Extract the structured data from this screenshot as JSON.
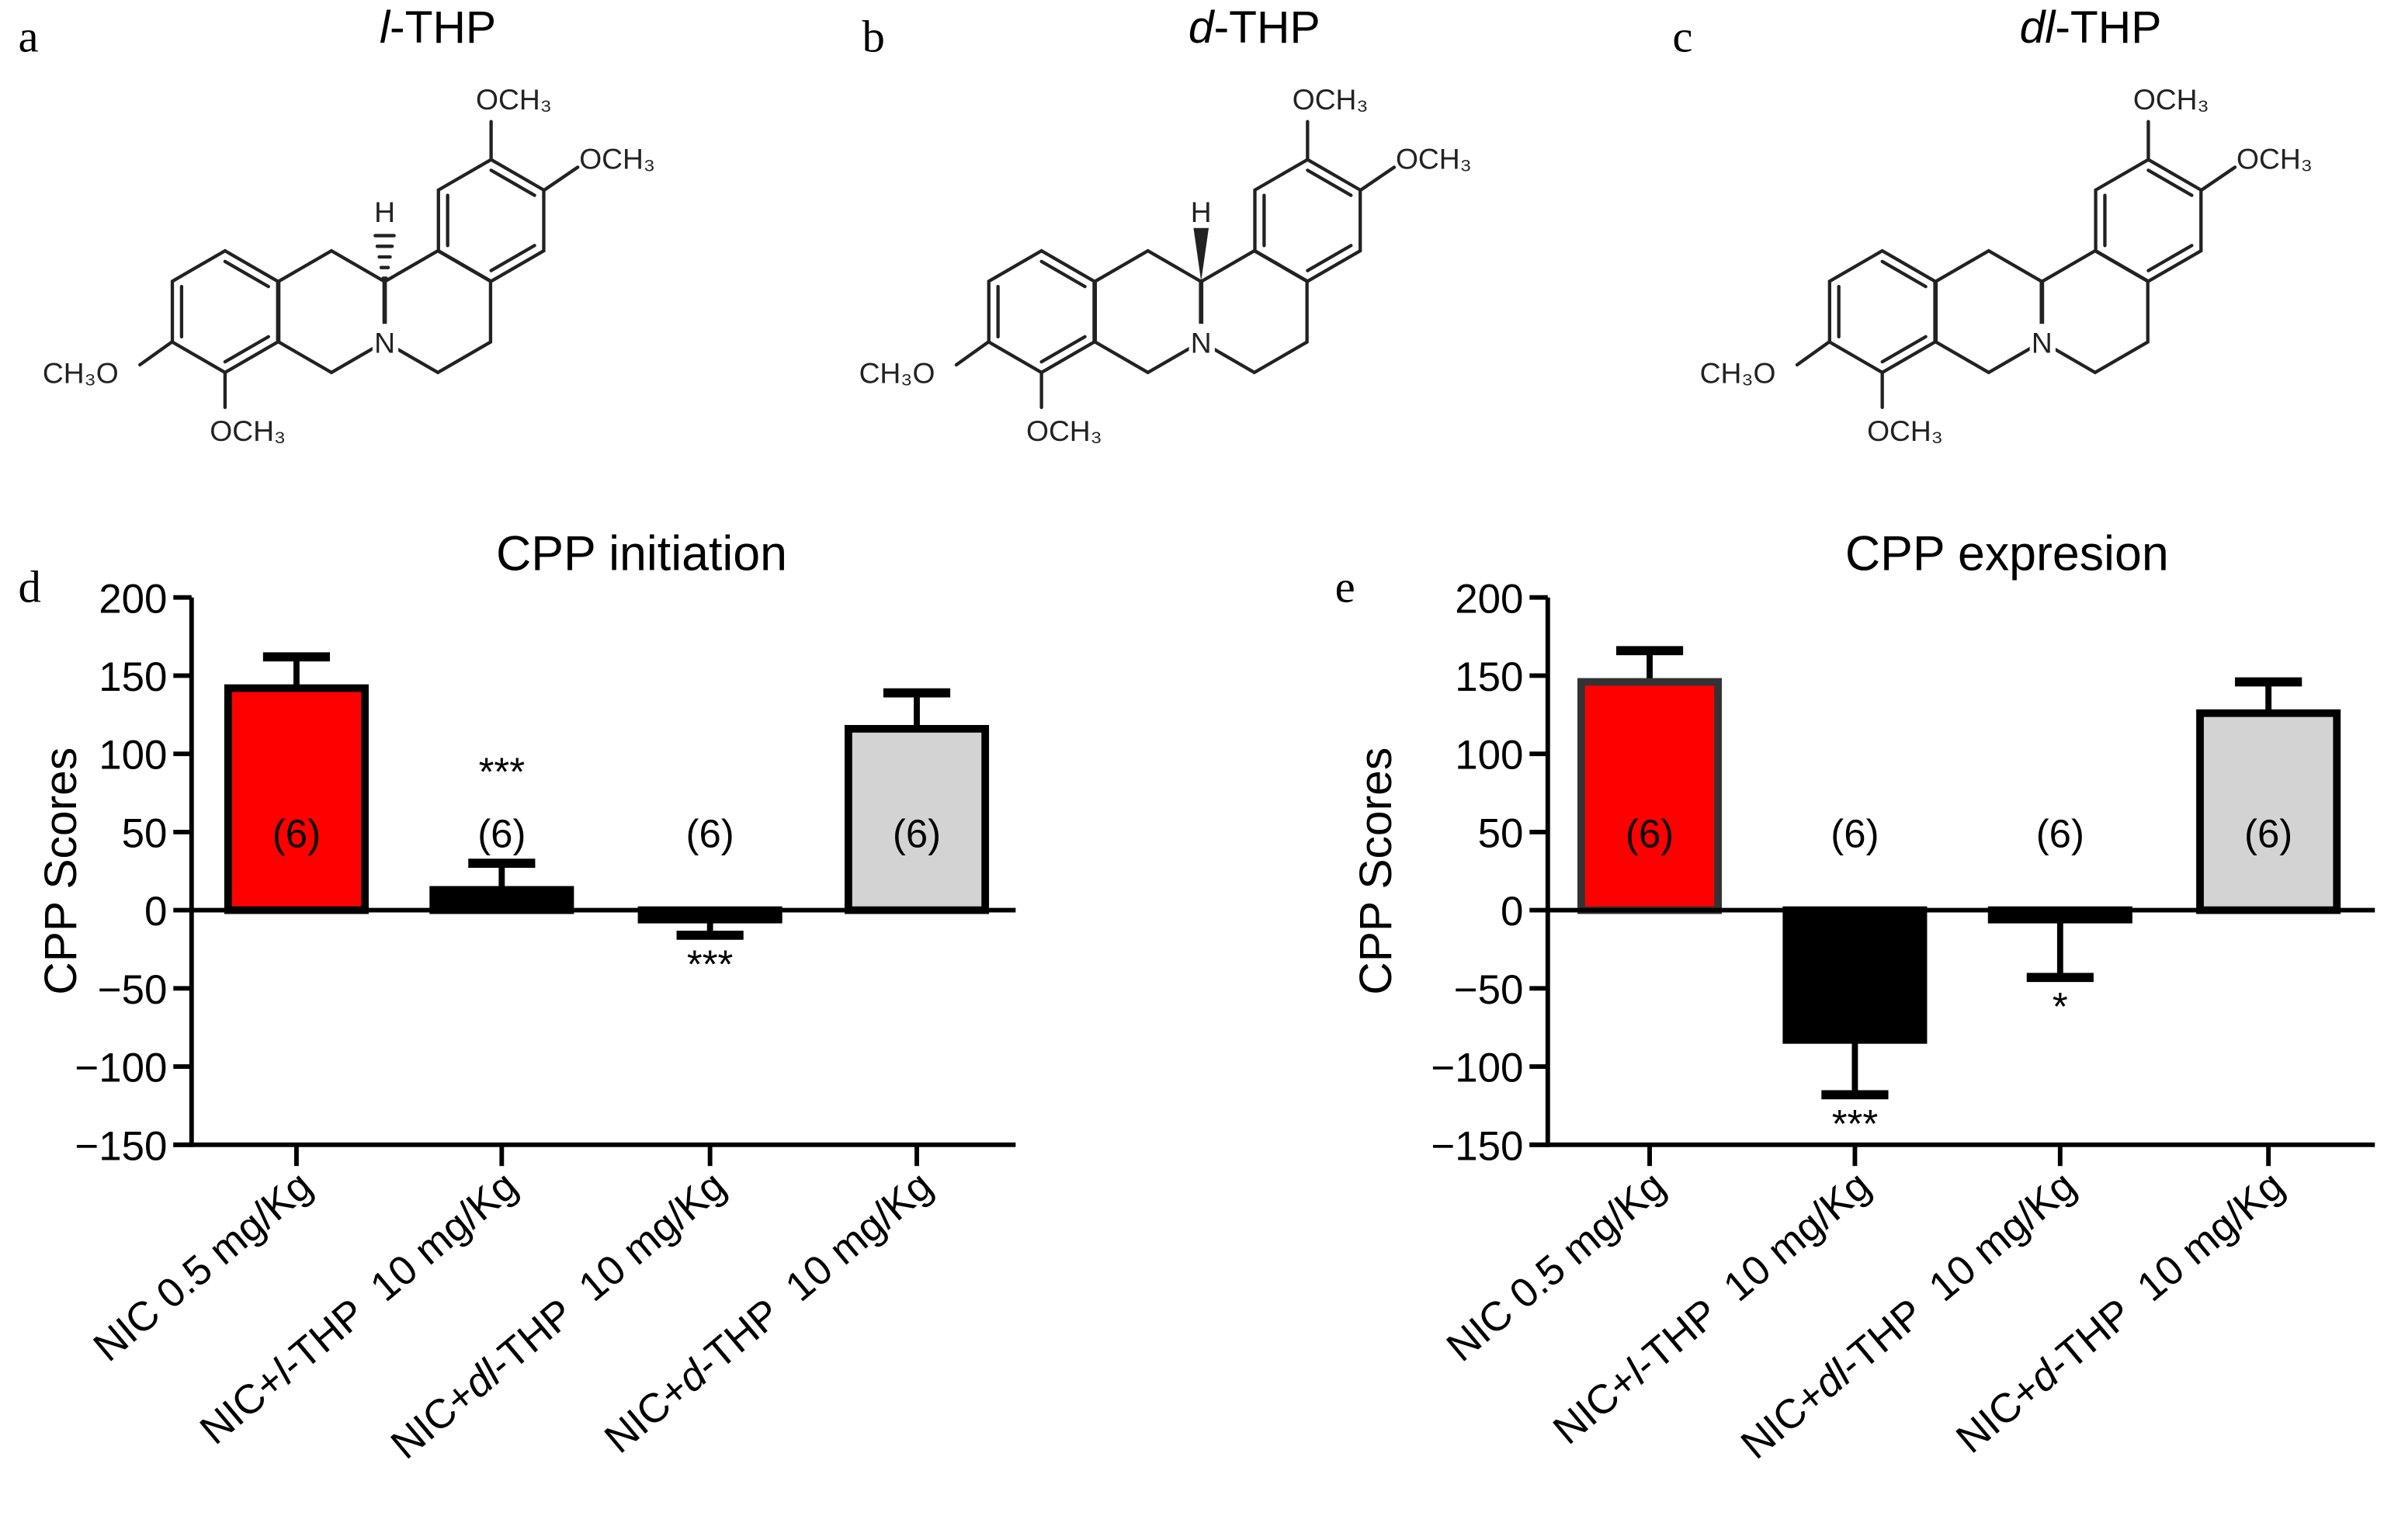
{
  "structures": [
    {
      "panel": "a",
      "title_italic": "l",
      "title_suffix": "-THP",
      "stereo": "hash"
    },
    {
      "panel": "b",
      "title_italic": "d",
      "title_suffix": "-THP",
      "stereo": "wedge"
    },
    {
      "panel": "c",
      "title_italic": "dl",
      "title_suffix": "-THP",
      "stereo": "none"
    }
  ],
  "chem_labels": {
    "och3": "OCH₃",
    "ch3o": "CH₃O",
    "n": "N",
    "h": "H"
  },
  "chart_data": [
    {
      "panel": "d",
      "type": "bar",
      "title": "CPP initiation",
      "ylabel": "CPP Scores",
      "ylim": [
        -150,
        200
      ],
      "yticks": [
        200,
        150,
        100,
        50,
        0,
        -50,
        -100,
        -150
      ],
      "ytick_labels": [
        "200",
        "150",
        "100",
        "50",
        "0",
        "−50",
        "−100",
        "−150"
      ],
      "categories": [
        {
          "prefix": "NIC 0.5 mg/Kg",
          "italic": "",
          "suffix": ""
        },
        {
          "prefix": "NIC+",
          "italic": "l",
          "suffix": "-THP  10 mg/Kg"
        },
        {
          "prefix": "NIC+",
          "italic": "dl",
          "suffix": "-THP  10 mg/Kg"
        },
        {
          "prefix": "NIC+",
          "italic": "d",
          "suffix": "-THP  10 mg/Kg"
        }
      ],
      "values": [
        142,
        13,
        -6,
        116
      ],
      "error": [
        20,
        17,
        10,
        23
      ],
      "n_labels": [
        "(6)",
        "(6)",
        "(6)",
        "(6)"
      ],
      "significance": [
        "",
        "***",
        "***",
        ""
      ],
      "colors": [
        "#ff0000",
        "#000000",
        "#000000",
        "#d3d3d3"
      ],
      "edge_colors": [
        "#000000",
        "#000000",
        "#000000",
        "#000000"
      ]
    },
    {
      "panel": "e",
      "type": "bar",
      "title": "CPP expresion",
      "ylabel": "CPP Scores",
      "ylim": [
        -150,
        200
      ],
      "yticks": [
        200,
        150,
        100,
        50,
        0,
        -50,
        -100,
        -150
      ],
      "ytick_labels": [
        "200",
        "150",
        "100",
        "50",
        "0",
        "−50",
        "−100",
        "−150"
      ],
      "categories": [
        {
          "prefix": "NIC 0.5 mg/Kg",
          "italic": "",
          "suffix": ""
        },
        {
          "prefix": "NIC+",
          "italic": "l",
          "suffix": "-THP  10 mg/Kg"
        },
        {
          "prefix": "NIC+",
          "italic": "dl",
          "suffix": "-THP  10 mg/Kg"
        },
        {
          "prefix": "NIC+",
          "italic": "d",
          "suffix": "-THP  10 mg/Kg"
        }
      ],
      "values": [
        146,
        -83,
        -6,
        126
      ],
      "error": [
        20,
        35,
        37,
        20
      ],
      "n_labels": [
        "(6)",
        "(6)",
        "(6)",
        "(6)"
      ],
      "significance": [
        "",
        "***",
        "*",
        ""
      ],
      "colors": [
        "#ff0000",
        "#000000",
        "#000000",
        "#d3d3d3"
      ],
      "edge_colors": [
        "#333333",
        "#000000",
        "#000000",
        "#000000"
      ]
    }
  ]
}
